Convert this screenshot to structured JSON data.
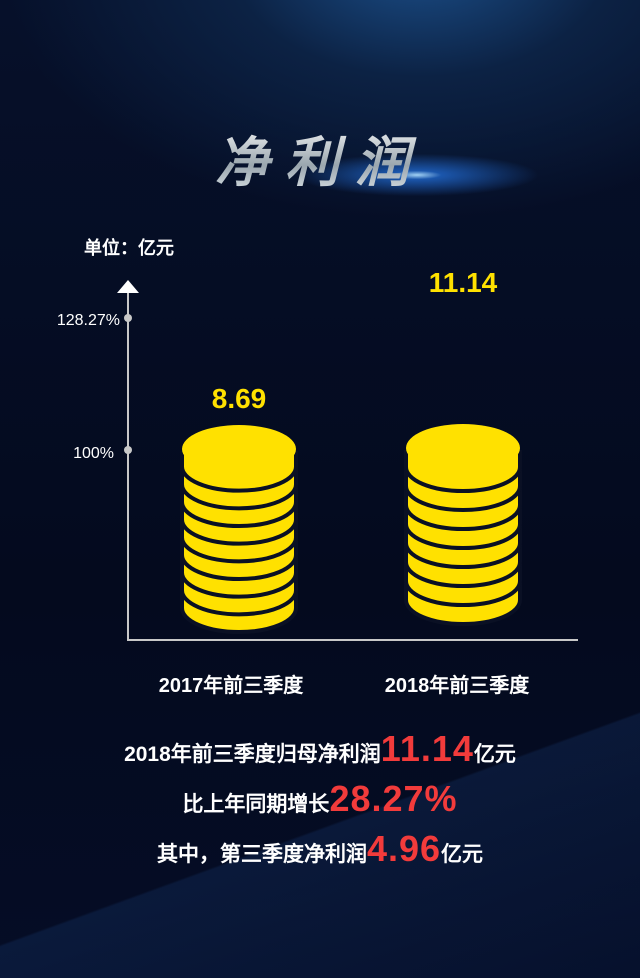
{
  "title": "净利润",
  "colors": {
    "coin": "#ffe100",
    "value_label": "#ffe100",
    "highlight": "#f23b3b",
    "axis": "#c8c8c8"
  },
  "chart_data": {
    "type": "bar",
    "style": "coin-stack pictograph",
    "unit_label": "单位：亿元",
    "categories": [
      "2017年前三季度",
      "2018年前三季度"
    ],
    "values": [
      8.69,
      11.14
    ],
    "value_labels": [
      "8.69",
      "11.14"
    ],
    "y_ticks": [
      "128.27%",
      "100%"
    ],
    "grid": false
  },
  "summary": {
    "line1": {
      "pre": "2018年前三季度归母净利润",
      "value": "11.14",
      "post": "亿元"
    },
    "line2": {
      "pre": "比上年同期增长",
      "value": "28.27%",
      "post": ""
    },
    "line3": {
      "pre": "其中，第三季度净利润",
      "value": "4.96",
      "post": "亿元"
    }
  }
}
